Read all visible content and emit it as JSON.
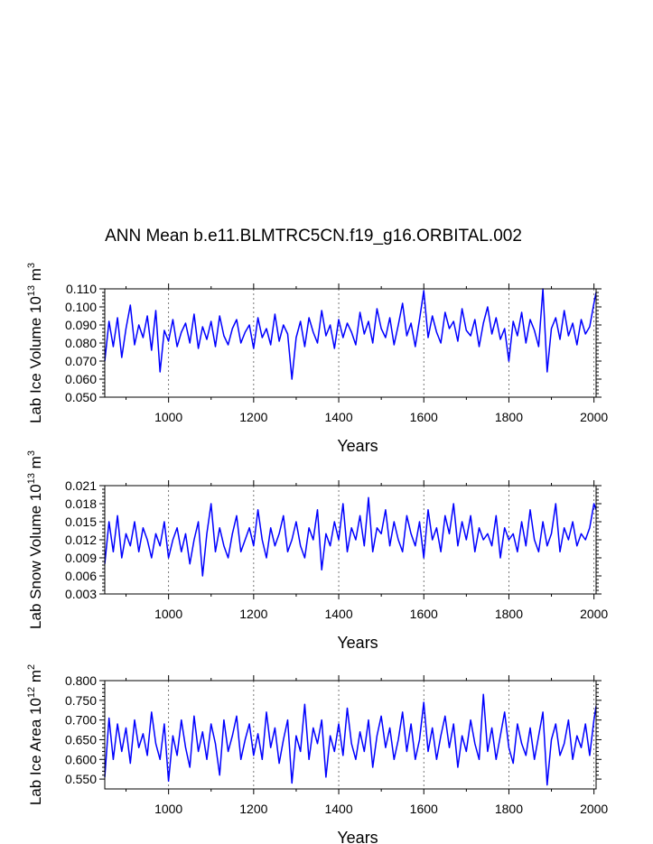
{
  "figure_title": "ANN Mean b.e11.BLMTRC5CN.f19_g16.ORBITAL.002",
  "colors": {
    "series": "#0000ff",
    "axes": "#000000",
    "grid": "#555555"
  },
  "chart_data": [
    {
      "type": "line",
      "id": "ice-volume",
      "ylabel": {
        "main": "Lab Ice Volume 10",
        "exp": "13",
        "unit": " m",
        "unit_exp": "3"
      },
      "xlabel": "Years",
      "xlim": [
        850,
        2005
      ],
      "ylim": [
        0.05,
        0.11
      ],
      "xticks": [
        1000,
        1200,
        1400,
        1600,
        1800,
        2000
      ],
      "xtick_labels": [
        "1000",
        "1200",
        "1400",
        "1600",
        "1800",
        "2000"
      ],
      "yticks": [
        0.05,
        0.06,
        0.07,
        0.08,
        0.09,
        0.1,
        0.11
      ],
      "ytick_labels": [
        "0.050",
        "0.060",
        "0.070",
        "0.080",
        "0.090",
        "0.100",
        "0.110"
      ],
      "vgrid": [
        1000,
        1200,
        1400,
        1600,
        1800,
        2000
      ],
      "series": [
        {
          "name": "Lab Ice Volume",
          "x": [
            850,
            860,
            870,
            880,
            890,
            900,
            910,
            920,
            930,
            940,
            950,
            960,
            970,
            980,
            990,
            1000,
            1010,
            1020,
            1030,
            1040,
            1050,
            1060,
            1070,
            1080,
            1090,
            1100,
            1110,
            1120,
            1130,
            1140,
            1150,
            1160,
            1170,
            1180,
            1190,
            1200,
            1210,
            1220,
            1230,
            1240,
            1250,
            1260,
            1270,
            1280,
            1290,
            1300,
            1310,
            1320,
            1330,
            1340,
            1350,
            1360,
            1370,
            1380,
            1390,
            1400,
            1410,
            1420,
            1430,
            1440,
            1450,
            1460,
            1470,
            1480,
            1490,
            1500,
            1510,
            1520,
            1530,
            1540,
            1550,
            1560,
            1570,
            1580,
            1590,
            1600,
            1610,
            1620,
            1630,
            1640,
            1650,
            1660,
            1670,
            1680,
            1690,
            1700,
            1710,
            1720,
            1730,
            1740,
            1750,
            1760,
            1770,
            1780,
            1790,
            1800,
            1810,
            1820,
            1830,
            1840,
            1850,
            1860,
            1870,
            1880,
            1890,
            1900,
            1910,
            1920,
            1930,
            1940,
            1950,
            1960,
            1970,
            1980,
            1990,
            2000,
            2005
          ],
          "values": [
            0.07,
            0.092,
            0.078,
            0.094,
            0.072,
            0.088,
            0.101,
            0.079,
            0.09,
            0.083,
            0.095,
            0.076,
            0.098,
            0.064,
            0.087,
            0.081,
            0.093,
            0.078,
            0.086,
            0.091,
            0.08,
            0.096,
            0.077,
            0.089,
            0.082,
            0.092,
            0.078,
            0.095,
            0.084,
            0.079,
            0.088,
            0.093,
            0.08,
            0.086,
            0.09,
            0.077,
            0.094,
            0.083,
            0.088,
            0.079,
            0.096,
            0.081,
            0.09,
            0.085,
            0.06,
            0.083,
            0.092,
            0.078,
            0.094,
            0.086,
            0.08,
            0.098,
            0.084,
            0.09,
            0.077,
            0.093,
            0.083,
            0.091,
            0.086,
            0.079,
            0.097,
            0.085,
            0.092,
            0.08,
            0.099,
            0.088,
            0.083,
            0.094,
            0.079,
            0.09,
            0.102,
            0.084,
            0.091,
            0.078,
            0.093,
            0.109,
            0.083,
            0.095,
            0.086,
            0.08,
            0.097,
            0.088,
            0.092,
            0.081,
            0.099,
            0.087,
            0.084,
            0.093,
            0.078,
            0.091,
            0.1,
            0.085,
            0.094,
            0.082,
            0.088,
            0.07,
            0.092,
            0.084,
            0.097,
            0.08,
            0.093,
            0.087,
            0.078,
            0.11,
            0.064,
            0.088,
            0.094,
            0.082,
            0.098,
            0.084,
            0.091,
            0.079,
            0.093,
            0.085,
            0.089,
            0.102,
            0.108
          ]
        }
      ]
    },
    {
      "type": "line",
      "id": "snow-volume",
      "ylabel": {
        "main": "Lab Snow Volume 10",
        "exp": "13",
        "unit": " m",
        "unit_exp": "3"
      },
      "xlabel": "Years",
      "xlim": [
        850,
        2005
      ],
      "ylim": [
        0.003,
        0.021
      ],
      "xticks": [
        1000,
        1200,
        1400,
        1600,
        1800,
        2000
      ],
      "xtick_labels": [
        "1000",
        "1200",
        "1400",
        "1600",
        "1800",
        "2000"
      ],
      "yticks": [
        0.003,
        0.006,
        0.009,
        0.012,
        0.015,
        0.018,
        0.021
      ],
      "ytick_labels": [
        "0.003",
        "0.006",
        "0.009",
        "0.012",
        "0.015",
        "0.018",
        "0.021"
      ],
      "vgrid": [
        1000,
        1200,
        1400,
        1600,
        1800,
        2000
      ],
      "series": [
        {
          "name": "Lab Snow Volume",
          "x": [
            850,
            860,
            870,
            880,
            890,
            900,
            910,
            920,
            930,
            940,
            950,
            960,
            970,
            980,
            990,
            1000,
            1010,
            1020,
            1030,
            1040,
            1050,
            1060,
            1070,
            1080,
            1090,
            1100,
            1110,
            1120,
            1130,
            1140,
            1150,
            1160,
            1170,
            1180,
            1190,
            1200,
            1210,
            1220,
            1230,
            1240,
            1250,
            1260,
            1270,
            1280,
            1290,
            1300,
            1310,
            1320,
            1330,
            1340,
            1350,
            1360,
            1370,
            1380,
            1390,
            1400,
            1410,
            1420,
            1430,
            1440,
            1450,
            1460,
            1470,
            1480,
            1490,
            1500,
            1510,
            1520,
            1530,
            1540,
            1550,
            1560,
            1570,
            1580,
            1590,
            1600,
            1610,
            1620,
            1630,
            1640,
            1650,
            1660,
            1670,
            1680,
            1690,
            1700,
            1710,
            1720,
            1730,
            1740,
            1750,
            1760,
            1770,
            1780,
            1790,
            1800,
            1810,
            1820,
            1830,
            1840,
            1850,
            1860,
            1870,
            1880,
            1890,
            1900,
            1910,
            1920,
            1930,
            1940,
            1950,
            1960,
            1970,
            1980,
            1990,
            2000,
            2005
          ],
          "values": [
            0.008,
            0.015,
            0.01,
            0.016,
            0.009,
            0.013,
            0.011,
            0.015,
            0.01,
            0.014,
            0.012,
            0.009,
            0.013,
            0.011,
            0.015,
            0.009,
            0.012,
            0.014,
            0.01,
            0.013,
            0.008,
            0.012,
            0.015,
            0.006,
            0.013,
            0.018,
            0.01,
            0.014,
            0.011,
            0.009,
            0.013,
            0.016,
            0.01,
            0.012,
            0.014,
            0.011,
            0.017,
            0.012,
            0.009,
            0.014,
            0.011,
            0.013,
            0.016,
            0.01,
            0.012,
            0.015,
            0.011,
            0.009,
            0.014,
            0.012,
            0.017,
            0.007,
            0.013,
            0.011,
            0.015,
            0.012,
            0.018,
            0.01,
            0.014,
            0.012,
            0.016,
            0.011,
            0.019,
            0.01,
            0.014,
            0.013,
            0.017,
            0.011,
            0.015,
            0.012,
            0.01,
            0.016,
            0.013,
            0.011,
            0.015,
            0.009,
            0.017,
            0.012,
            0.014,
            0.01,
            0.016,
            0.013,
            0.018,
            0.011,
            0.015,
            0.012,
            0.016,
            0.01,
            0.014,
            0.012,
            0.013,
            0.011,
            0.016,
            0.009,
            0.014,
            0.012,
            0.013,
            0.01,
            0.015,
            0.011,
            0.017,
            0.012,
            0.01,
            0.015,
            0.011,
            0.013,
            0.018,
            0.01,
            0.014,
            0.012,
            0.015,
            0.011,
            0.013,
            0.012,
            0.014,
            0.018,
            0.017
          ]
        }
      ]
    },
    {
      "type": "line",
      "id": "ice-area",
      "ylabel": {
        "main": "Lab Ice Area 10",
        "exp": "12",
        "unit": " m",
        "unit_exp": "2"
      },
      "xlabel": "Years",
      "xlim": [
        850,
        2005
      ],
      "ylim": [
        0.525,
        0.8
      ],
      "xticks": [
        1000,
        1200,
        1400,
        1600,
        1800,
        2000
      ],
      "xtick_labels": [
        "1000",
        "1200",
        "1400",
        "1600",
        "1800",
        "2000"
      ],
      "yticks": [
        0.55,
        0.6,
        0.65,
        0.7,
        0.75,
        0.8
      ],
      "ytick_labels": [
        "0.550",
        "0.600",
        "0.650",
        "0.700",
        "0.750",
        "0.800"
      ],
      "vgrid": [
        1000,
        1200,
        1400,
        1600,
        1800,
        2000
      ],
      "series": [
        {
          "name": "Lab Ice Area",
          "x": [
            850,
            860,
            870,
            880,
            890,
            900,
            910,
            920,
            930,
            940,
            950,
            960,
            970,
            980,
            990,
            1000,
            1010,
            1020,
            1030,
            1040,
            1050,
            1060,
            1070,
            1080,
            1090,
            1100,
            1110,
            1120,
            1130,
            1140,
            1150,
            1160,
            1170,
            1180,
            1190,
            1200,
            1210,
            1220,
            1230,
            1240,
            1250,
            1260,
            1270,
            1280,
            1290,
            1300,
            1310,
            1320,
            1330,
            1340,
            1350,
            1360,
            1370,
            1380,
            1390,
            1400,
            1410,
            1420,
            1430,
            1440,
            1450,
            1460,
            1470,
            1480,
            1490,
            1500,
            1510,
            1520,
            1530,
            1540,
            1550,
            1560,
            1570,
            1580,
            1590,
            1600,
            1610,
            1620,
            1630,
            1640,
            1650,
            1660,
            1670,
            1680,
            1690,
            1700,
            1710,
            1720,
            1730,
            1740,
            1750,
            1760,
            1770,
            1780,
            1790,
            1800,
            1810,
            1820,
            1830,
            1840,
            1850,
            1860,
            1870,
            1880,
            1890,
            1900,
            1910,
            1920,
            1930,
            1940,
            1950,
            1960,
            1970,
            1980,
            1990,
            2000,
            2005
          ],
          "values": [
            0.555,
            0.705,
            0.6,
            0.69,
            0.62,
            0.68,
            0.59,
            0.7,
            0.63,
            0.665,
            0.61,
            0.72,
            0.64,
            0.6,
            0.69,
            0.545,
            0.66,
            0.61,
            0.7,
            0.63,
            0.58,
            0.71,
            0.62,
            0.67,
            0.6,
            0.69,
            0.64,
            0.56,
            0.7,
            0.62,
            0.66,
            0.71,
            0.6,
            0.65,
            0.69,
            0.61,
            0.665,
            0.6,
            0.72,
            0.63,
            0.68,
            0.59,
            0.65,
            0.7,
            0.54,
            0.66,
            0.62,
            0.74,
            0.6,
            0.68,
            0.64,
            0.7,
            0.555,
            0.66,
            0.62,
            0.69,
            0.61,
            0.73,
            0.64,
            0.6,
            0.67,
            0.62,
            0.7,
            0.58,
            0.66,
            0.71,
            0.63,
            0.68,
            0.6,
            0.65,
            0.72,
            0.62,
            0.69,
            0.6,
            0.65,
            0.745,
            0.62,
            0.68,
            0.6,
            0.66,
            0.71,
            0.63,
            0.69,
            0.58,
            0.66,
            0.62,
            0.7,
            0.64,
            0.6,
            0.765,
            0.62,
            0.68,
            0.6,
            0.66,
            0.72,
            0.63,
            0.59,
            0.69,
            0.64,
            0.61,
            0.68,
            0.6,
            0.66,
            0.72,
            0.535,
            0.65,
            0.69,
            0.61,
            0.64,
            0.7,
            0.6,
            0.66,
            0.63,
            0.69,
            0.61,
            0.7,
            0.735
          ]
        }
      ]
    }
  ]
}
